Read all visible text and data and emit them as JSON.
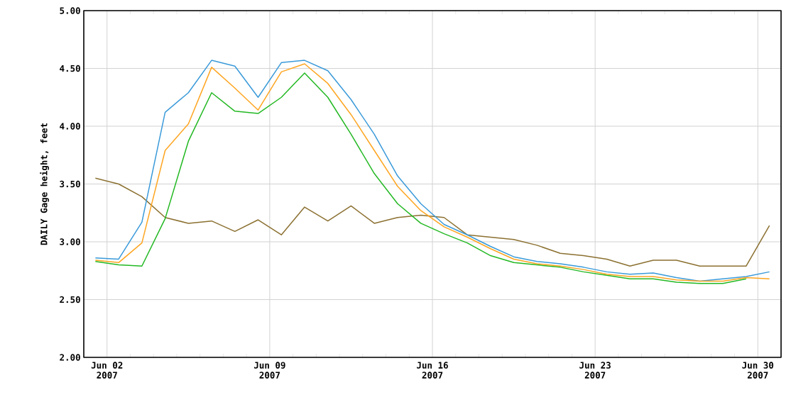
{
  "chart_data": {
    "type": "line",
    "ylabel": "DAILY Gage height, feet",
    "x": [
      "2007-06-01T12:00",
      "2007-06-02T12:00",
      "2007-06-03T12:00",
      "2007-06-04T12:00",
      "2007-06-05T12:00",
      "2007-06-06T12:00",
      "2007-06-07T12:00",
      "2007-06-08T12:00",
      "2007-06-09T12:00",
      "2007-06-10T12:00",
      "2007-06-11T12:00",
      "2007-06-12T12:00",
      "2007-06-13T12:00",
      "2007-06-14T12:00",
      "2007-06-15T12:00",
      "2007-06-16T12:00",
      "2007-06-17T12:00",
      "2007-06-18T12:00",
      "2007-06-19T12:00",
      "2007-06-20T12:00",
      "2007-06-21T12:00",
      "2007-06-22T12:00",
      "2007-06-23T12:00",
      "2007-06-24T12:00",
      "2007-06-25T12:00",
      "2007-06-26T12:00",
      "2007-06-27T12:00",
      "2007-06-28T12:00",
      "2007-06-29T12:00",
      "2007-06-30T12:00"
    ],
    "series": [
      {
        "color": "#8b7030",
        "values": [
          3.55,
          3.5,
          3.39,
          3.21,
          3.16,
          3.18,
          3.09,
          3.19,
          3.06,
          3.3,
          3.18,
          3.31,
          3.16,
          3.21,
          3.23,
          3.21,
          3.06,
          3.04,
          3.02,
          2.97,
          2.9,
          2.88,
          2.85,
          2.79,
          2.84,
          2.84,
          2.79,
          2.79,
          2.79,
          3.14
        ]
      },
      {
        "color": "#22b822",
        "values": [
          2.83,
          2.8,
          2.79,
          3.2,
          3.87,
          4.29,
          4.13,
          4.11,
          4.25,
          4.46,
          4.25,
          3.93,
          3.59,
          3.33,
          3.16,
          3.07,
          2.99,
          2.88,
          2.82,
          2.8,
          2.78,
          2.74,
          2.71,
          2.68,
          2.68,
          2.65,
          2.64,
          2.64,
          2.68,
          null
        ]
      },
      {
        "color": "#3a9ad9",
        "values": [
          2.86,
          2.85,
          3.17,
          4.12,
          4.29,
          4.57,
          4.52,
          4.25,
          4.55,
          4.57,
          4.48,
          4.23,
          3.93,
          3.57,
          3.33,
          3.15,
          3.06,
          2.96,
          2.87,
          2.83,
          2.81,
          2.78,
          2.74,
          2.72,
          2.73,
          2.69,
          2.66,
          2.68,
          2.7,
          2.74
        ]
      },
      {
        "color": "#ffa520",
        "values": [
          2.84,
          2.82,
          2.99,
          3.79,
          4.02,
          4.51,
          4.33,
          4.14,
          4.47,
          4.54,
          4.37,
          4.1,
          3.79,
          3.48,
          3.27,
          3.13,
          3.04,
          2.94,
          2.85,
          2.81,
          2.79,
          2.76,
          2.72,
          2.7,
          2.7,
          2.67,
          2.66,
          2.66,
          2.69,
          2.68
        ]
      }
    ],
    "xlim": [
      "2007-06-01T00:00",
      "2007-07-01T00:00"
    ],
    "xticks": [
      {
        "value": "2007-06-02",
        "label": "Jun 02\n2007"
      },
      {
        "value": "2007-06-09",
        "label": "Jun 09\n2007"
      },
      {
        "value": "2007-06-16",
        "label": "Jun 16\n2007"
      },
      {
        "value": "2007-06-23",
        "label": "Jun 23\n2007"
      },
      {
        "value": "2007-06-30",
        "label": "Jun 30\n2007"
      },
      {
        "value": "2007-06-03",
        "label": null
      },
      {
        "value": "2007-06-04",
        "label": null
      },
      {
        "value": "2007-06-05",
        "label": null
      },
      {
        "value": "2007-06-06",
        "label": null
      },
      {
        "value": "2007-06-07",
        "label": null
      },
      {
        "value": "2007-06-08",
        "label": null
      },
      {
        "value": "2007-06-10",
        "label": null
      },
      {
        "value": "2007-06-11",
        "label": null
      },
      {
        "value": "2007-06-12",
        "label": null
      },
      {
        "value": "2007-06-13",
        "label": null
      },
      {
        "value": "2007-06-14",
        "label": null
      },
      {
        "value": "2007-06-15",
        "label": null
      },
      {
        "value": "2007-06-17",
        "label": null
      },
      {
        "value": "2007-06-18",
        "label": null
      },
      {
        "value": "2007-06-19",
        "label": null
      },
      {
        "value": "2007-06-20",
        "label": null
      },
      {
        "value": "2007-06-21",
        "label": null
      },
      {
        "value": "2007-06-22",
        "label": null
      },
      {
        "value": "2007-06-24",
        "label": null
      },
      {
        "value": "2007-06-25",
        "label": null
      },
      {
        "value": "2007-06-26",
        "label": null
      },
      {
        "value": "2007-06-27",
        "label": null
      },
      {
        "value": "2007-06-28",
        "label": null
      },
      {
        "value": "2007-06-29",
        "label": null
      }
    ],
    "ylim": [
      2,
      5
    ],
    "yticks": [
      {
        "value": 2,
        "label": "2.00"
      },
      {
        "value": 2.5,
        "label": "2.50"
      },
      {
        "value": 3,
        "label": "3.00"
      },
      {
        "value": 3.5,
        "label": "3.50"
      },
      {
        "value": 4,
        "label": "4.00"
      },
      {
        "value": 4.5,
        "label": "4.50"
      },
      {
        "value": 5,
        "label": "5.00"
      }
    ],
    "grid": true,
    "legend": false,
    "marker": "none",
    "line_style": "solid"
  }
}
